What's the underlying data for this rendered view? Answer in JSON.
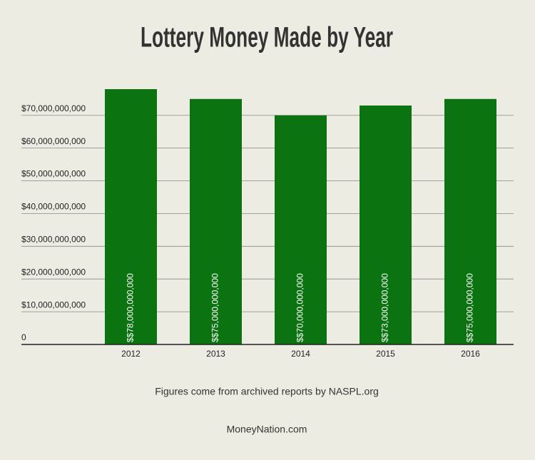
{
  "chart_data": {
    "type": "bar",
    "title": "Lottery Money Made by Year",
    "categories": [
      "2012",
      "2013",
      "2014",
      "2015",
      "2016"
    ],
    "values": [
      78000000000,
      75000000000,
      70000000000,
      73000000000,
      75000000000
    ],
    "value_labels": [
      "$$78,000,000,000",
      "$$75,000,000,000",
      "$$70,000,000,000",
      "$$73,000,000,000",
      "$$75,000,000,000"
    ],
    "color": "#0b7410",
    "ylim": [
      0,
      78000000000
    ],
    "yticks": [
      0,
      {
        "value": 10000000000,
        "label": "$10,000,000,000"
      },
      {
        "value": 20000000000,
        "label": "$20,000,000,000"
      },
      {
        "value": 30000000000,
        "label": "$30,000,000,000"
      },
      {
        "value": 40000000000,
        "label": "$40,000,000,000"
      },
      {
        "value": 50000000000,
        "label": "$50,000,000,000"
      },
      {
        "value": 60000000000,
        "label": "$60,000,000,000"
      },
      {
        "value": 70000000000,
        "label": "$70,000,000,000"
      }
    ],
    "grid": true,
    "annotations": [
      "Figures come from archived reports by NASPL.org",
      "MoneyNation.com"
    ]
  }
}
